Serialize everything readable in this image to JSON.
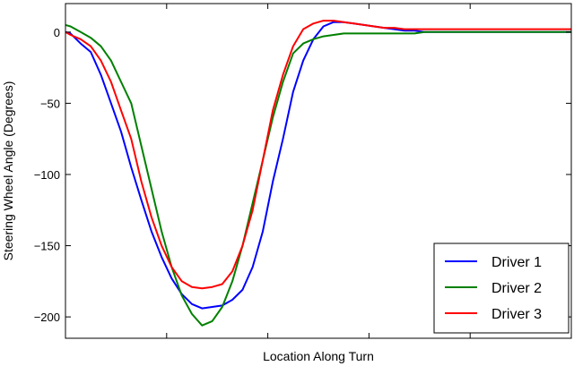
{
  "chart_data": {
    "type": "line",
    "title": "",
    "xlabel": "Location Along Turn",
    "ylabel": "Steering Wheel Angle (Degrees)",
    "xlim": [
      0,
      100
    ],
    "ylim": [
      -215,
      20
    ],
    "yticks": [
      0,
      -50,
      -100,
      -150,
      -200
    ],
    "ytick_labels": [
      "0",
      "−50",
      "−100",
      "−150",
      "−200"
    ],
    "xtick_labels_shown": false,
    "grid": false,
    "legend_position": "bottom-right",
    "series": [
      {
        "name": "Driver 1",
        "color": "#0000ff",
        "x": [
          0,
          1,
          3,
          5,
          7,
          9,
          11,
          13,
          15,
          17,
          19,
          21,
          23,
          25,
          27,
          29,
          31,
          33,
          35,
          37,
          39,
          41,
          43,
          45,
          47,
          49,
          51,
          53,
          55,
          57,
          59,
          61,
          63,
          65,
          67,
          69,
          71,
          73,
          75,
          77,
          79,
          81,
          84,
          88,
          92,
          96,
          100
        ],
        "y": [
          0,
          -1,
          -8,
          -14,
          -30,
          -50,
          -70,
          -95,
          -118,
          -140,
          -158,
          -173,
          -184,
          -191,
          -194,
          -193,
          -192,
          -188,
          -181,
          -165,
          -140,
          -105,
          -75,
          -42,
          -20,
          -5,
          4,
          7,
          7,
          6,
          5,
          4,
          3,
          2,
          1,
          1,
          0,
          0,
          0,
          0,
          0,
          0,
          0,
          0,
          0,
          0,
          0
        ]
      },
      {
        "name": "Driver 2",
        "color": "#008000",
        "x": [
          0,
          1,
          3,
          5,
          7,
          9,
          11,
          13,
          15,
          17,
          19,
          21,
          23,
          25,
          27,
          29,
          31,
          33,
          35,
          37,
          39,
          41,
          43,
          45,
          47,
          49,
          51,
          53,
          55,
          57,
          59,
          61,
          63,
          65,
          67,
          69,
          71,
          73,
          75,
          77,
          79,
          81,
          84,
          88,
          92,
          96,
          100
        ],
        "y": [
          5,
          4,
          0,
          -4,
          -10,
          -20,
          -35,
          -50,
          -80,
          -110,
          -140,
          -165,
          -185,
          -198,
          -206,
          -203,
          -193,
          -175,
          -150,
          -120,
          -90,
          -60,
          -35,
          -15,
          -8,
          -5,
          -3,
          -2,
          -1,
          -1,
          -1,
          -1,
          -1,
          -1,
          -1,
          -1,
          0,
          0,
          0,
          0,
          0,
          0,
          0,
          0,
          0,
          0,
          0
        ]
      },
      {
        "name": "Driver 3",
        "color": "#ff0000",
        "x": [
          0,
          1,
          3,
          5,
          7,
          9,
          11,
          13,
          15,
          17,
          19,
          21,
          23,
          25,
          27,
          29,
          31,
          33,
          35,
          37,
          39,
          41,
          43,
          45,
          47,
          49,
          51,
          53,
          55,
          57,
          59,
          61,
          63,
          65,
          67,
          69,
          71,
          73,
          75,
          77,
          79,
          81,
          84,
          88,
          92,
          96,
          100
        ],
        "y": [
          0,
          -2,
          -5,
          -10,
          -20,
          -35,
          -55,
          -75,
          -105,
          -130,
          -150,
          -165,
          -175,
          -179,
          -180,
          -179,
          -177,
          -168,
          -150,
          -125,
          -90,
          -55,
          -30,
          -10,
          2,
          6,
          8,
          8,
          7,
          6,
          5,
          4,
          3,
          3,
          2,
          2,
          2,
          2,
          2,
          2,
          2,
          2,
          2,
          2,
          2,
          2,
          2
        ]
      }
    ]
  }
}
